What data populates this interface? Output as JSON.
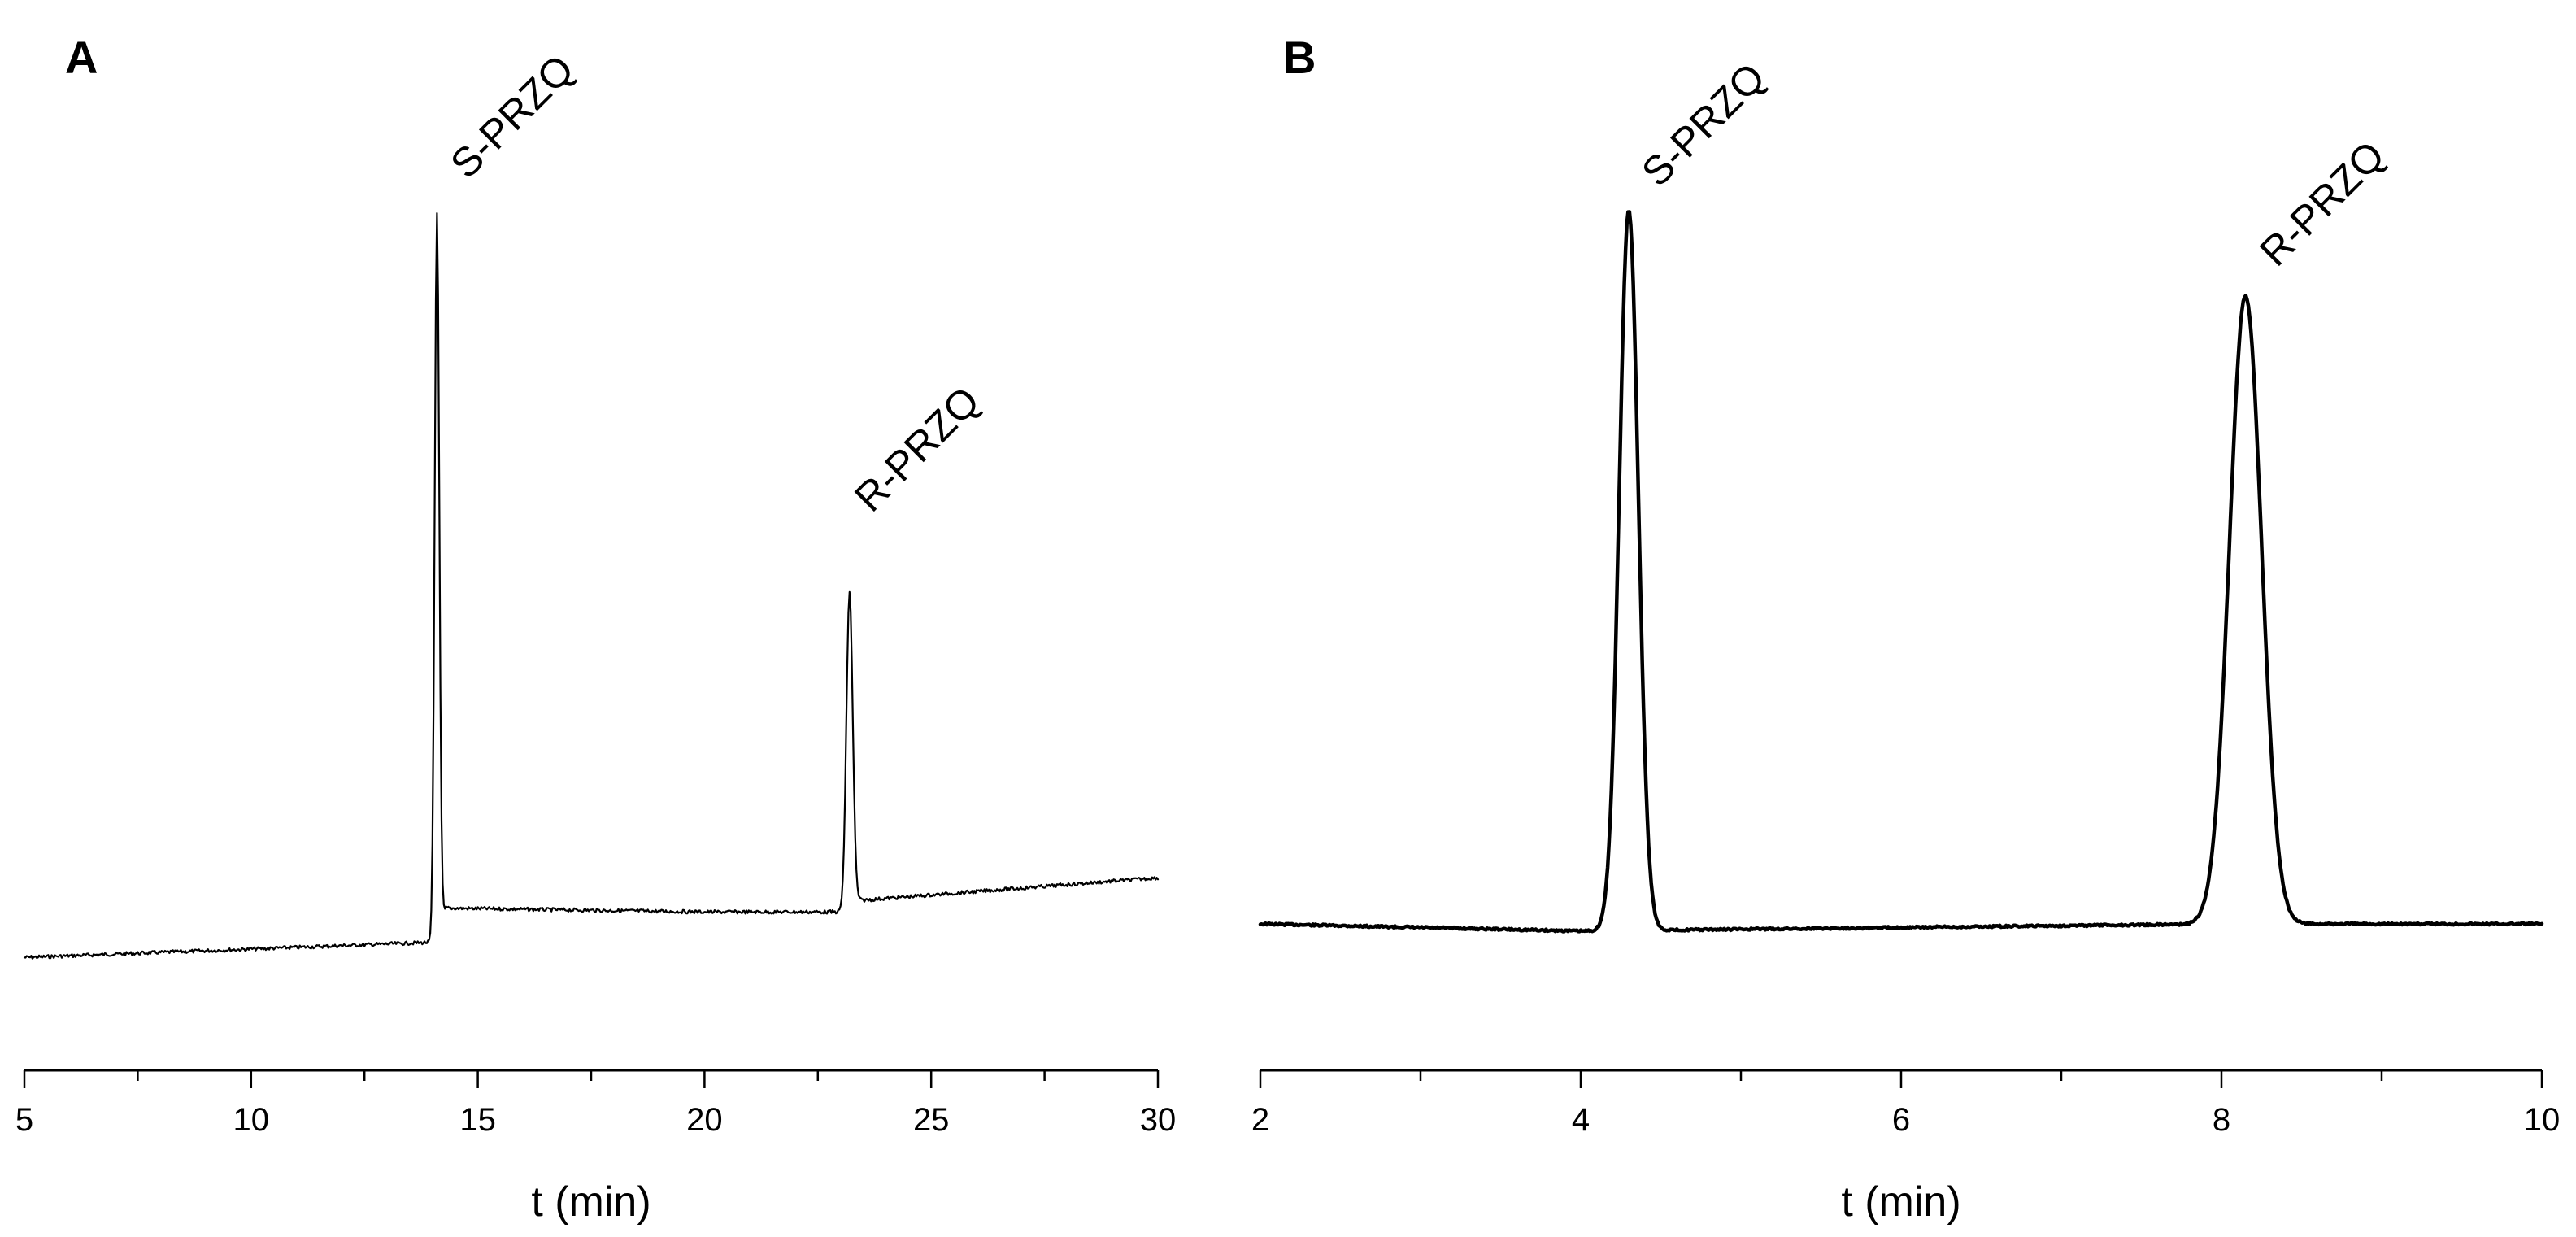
{
  "chart_data": [
    {
      "type": "line",
      "panel_label": "A",
      "xlabel": "t (min)",
      "ylabel": "",
      "xlim": [
        5,
        30
      ],
      "ylim": [
        0,
        1
      ],
      "x_ticks": [
        5,
        10,
        15,
        20,
        25,
        30
      ],
      "x_minor_ticks": [
        7.5,
        12.5,
        17.5,
        22.5,
        27.5
      ],
      "grid": false,
      "line_color": "#000000",
      "baseline": [
        [
          5,
          0.02
        ],
        [
          14,
          0.04
        ],
        [
          14.3,
          0.085
        ],
        [
          20,
          0.08
        ],
        [
          23,
          0.08
        ],
        [
          23.4,
          0.095
        ],
        [
          30,
          0.125
        ]
      ],
      "peaks": [
        {
          "label": "S-PRZQ",
          "x": 14.1,
          "height": 1.0,
          "width": 0.05
        },
        {
          "label": "R-PRZQ",
          "x": 23.2,
          "height": 0.5,
          "width": 0.07
        }
      ]
    },
    {
      "type": "line",
      "panel_label": "B",
      "xlabel": "t (min)",
      "ylabel": "",
      "xlim": [
        2,
        10
      ],
      "ylim": [
        0,
        1
      ],
      "x_ticks": [
        2,
        4,
        6,
        8,
        10
      ],
      "x_minor_ticks": [
        3,
        5,
        7,
        9
      ],
      "grid": false,
      "line_color": "#000000",
      "baseline": [
        [
          2,
          0.0
        ],
        [
          4,
          -0.01
        ],
        [
          6,
          -0.005
        ],
        [
          8,
          0.0
        ],
        [
          10,
          0.0
        ]
      ],
      "peaks": [
        {
          "label": "S-PRZQ",
          "x": 4.3,
          "height": 1.0,
          "width": 0.06
        },
        {
          "label": "R-PRZQ",
          "x": 8.15,
          "height": 0.88,
          "width": 0.1
        }
      ]
    }
  ]
}
